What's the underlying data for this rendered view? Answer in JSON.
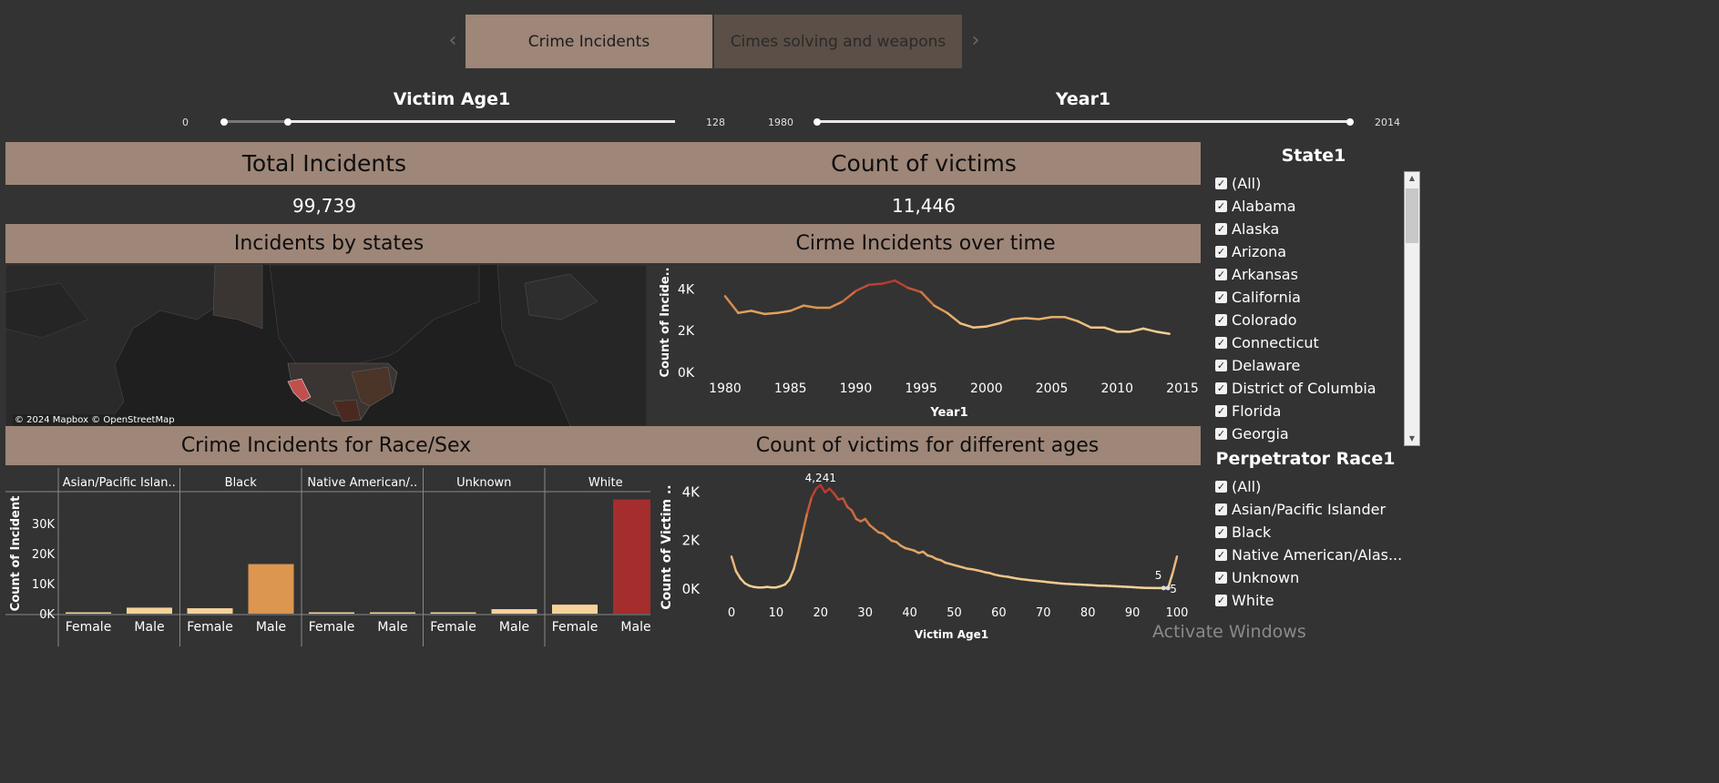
{
  "tabs": {
    "active": "Crime Incidents",
    "inactive": "Cimes solving and weapons"
  },
  "sliders": {
    "age": {
      "title": "Victim Age1",
      "min": "0",
      "max": "128"
    },
    "year": {
      "title": "Year1",
      "min": "1980",
      "max": "2014"
    }
  },
  "kpis": {
    "total_title": "Total Incidents",
    "total_value": "99,739",
    "victims_title": "Count of victims",
    "victims_value": "11,446"
  },
  "sections": {
    "map": "Incidents by states",
    "time": "Cirme Incidents over time",
    "race": "Crime Incidents for Race/Sex",
    "ages": "Count of victims for different ages"
  },
  "map": {
    "attribution": "© 2024 Mapbox © OpenStreetMap",
    "highlight_color": "#c0504d"
  },
  "filters": {
    "state_title": "State1",
    "states": [
      "(All)",
      "Alabama",
      "Alaska",
      "Arizona",
      "Arkansas",
      "California",
      "Colorado",
      "Connecticut",
      "Delaware",
      "District of Columbia",
      "Florida",
      "Georgia"
    ],
    "race_title": "Perpetrator Race1",
    "races": [
      "(All)",
      "Asian/Pacific Islander",
      "Black",
      "Native American/Alas...",
      "Unknown",
      "White"
    ]
  },
  "watermark": "Activate Windows",
  "chart_data": [
    {
      "type": "line",
      "title": "Cirme Incidents over time",
      "xlabel": "Year1",
      "ylabel": "Count of Incide..",
      "x": [
        1980,
        1981,
        1982,
        1983,
        1984,
        1985,
        1986,
        1987,
        1988,
        1989,
        1990,
        1991,
        1992,
        1993,
        1994,
        1995,
        1996,
        1997,
        1998,
        1999,
        2000,
        2001,
        2002,
        2003,
        2004,
        2005,
        2006,
        2007,
        2008,
        2009,
        2010,
        2011,
        2012,
        2013,
        2014
      ],
      "values": [
        3650,
        2850,
        2950,
        2800,
        2850,
        2950,
        3200,
        3100,
        3100,
        3400,
        3900,
        4200,
        4250,
        4400,
        4050,
        3850,
        3200,
        2850,
        2350,
        2150,
        2200,
        2350,
        2550,
        2600,
        2550,
        2650,
        2650,
        2450,
        2150,
        2150,
        1950,
        1950,
        2100,
        1950,
        1850
      ],
      "xticks": [
        "1980",
        "1985",
        "1990",
        "1995",
        "2000",
        "2005",
        "2010",
        "2015"
      ],
      "yticks": [
        "0K",
        "2K",
        "4K"
      ],
      "ylim": [
        0,
        4800
      ]
    },
    {
      "type": "bar",
      "title": "Crime Incidents for Race/Sex",
      "ylabel": "Count of Incident",
      "groups": [
        "Asian/Pacific Islan..",
        "Black",
        "Native American/..",
        "Unknown",
        "White"
      ],
      "categories": [
        "Female",
        "Male"
      ],
      "series": [
        {
          "group": "Asian/Pacific Islan..",
          "values": [
            250,
            2000
          ]
        },
        {
          "group": "Black",
          "values": [
            1800,
            16500
          ]
        },
        {
          "group": "Native American/..",
          "values": [
            80,
            300
          ]
        },
        {
          "group": "Unknown",
          "values": [
            200,
            1500
          ]
        },
        {
          "group": "White",
          "values": [
            3000,
            38000
          ]
        }
      ],
      "colors": [
        "#f5d29a",
        "#dc9650",
        "#a52d2d"
      ],
      "yticks": [
        "0K",
        "10K",
        "20K",
        "30K"
      ],
      "ylim": [
        0,
        40000
      ]
    },
    {
      "type": "line",
      "title": "Count of victims for different ages",
      "xlabel": "Victim Age1",
      "ylabel": "Count of Victim ..",
      "x": [
        0,
        1,
        2,
        3,
        4,
        5,
        6,
        7,
        8,
        9,
        10,
        11,
        12,
        13,
        14,
        15,
        16,
        17,
        18,
        19,
        20,
        21,
        22,
        23,
        24,
        25,
        26,
        27,
        28,
        29,
        30,
        31,
        32,
        33,
        34,
        35,
        36,
        37,
        38,
        39,
        40,
        41,
        42,
        43,
        44,
        45,
        46,
        47,
        48,
        49,
        50,
        51,
        52,
        53,
        54,
        55,
        56,
        57,
        58,
        59,
        60,
        61,
        62,
        63,
        64,
        65,
        66,
        67,
        68,
        69,
        70,
        71,
        72,
        73,
        74,
        75,
        76,
        77,
        78,
        79,
        80,
        81,
        82,
        83,
        84,
        85,
        86,
        87,
        88,
        89,
        90,
        91,
        92,
        93,
        94,
        95,
        96,
        97,
        98,
        99,
        100
      ],
      "values": [
        1300,
        700,
        400,
        200,
        100,
        50,
        30,
        30,
        50,
        30,
        30,
        80,
        150,
        350,
        800,
        1500,
        2300,
        3100,
        3750,
        4100,
        4241,
        3950,
        4100,
        3900,
        3650,
        3700,
        3350,
        3200,
        2850,
        2750,
        2850,
        2600,
        2450,
        2300,
        2250,
        2100,
        1950,
        1900,
        1750,
        1650,
        1600,
        1550,
        1450,
        1500,
        1350,
        1300,
        1200,
        1150,
        1050,
        1000,
        950,
        900,
        850,
        800,
        780,
        740,
        700,
        650,
        620,
        560,
        520,
        490,
        470,
        430,
        400,
        370,
        350,
        330,
        310,
        290,
        270,
        250,
        230,
        210,
        190,
        180,
        170,
        160,
        150,
        140,
        130,
        120,
        110,
        100,
        100,
        90,
        80,
        70,
        60,
        50,
        40,
        30,
        20,
        10,
        10,
        5,
        5,
        5,
        5,
        600,
        1300
      ],
      "annotations": [
        "4,241",
        "5",
        "5"
      ],
      "xticks": [
        "0",
        "10",
        "20",
        "30",
        "40",
        "50",
        "60",
        "70",
        "80",
        "90",
        "100"
      ],
      "yticks": [
        "0K",
        "2K",
        "4K"
      ],
      "ylim": [
        0,
        4500
      ]
    }
  ]
}
